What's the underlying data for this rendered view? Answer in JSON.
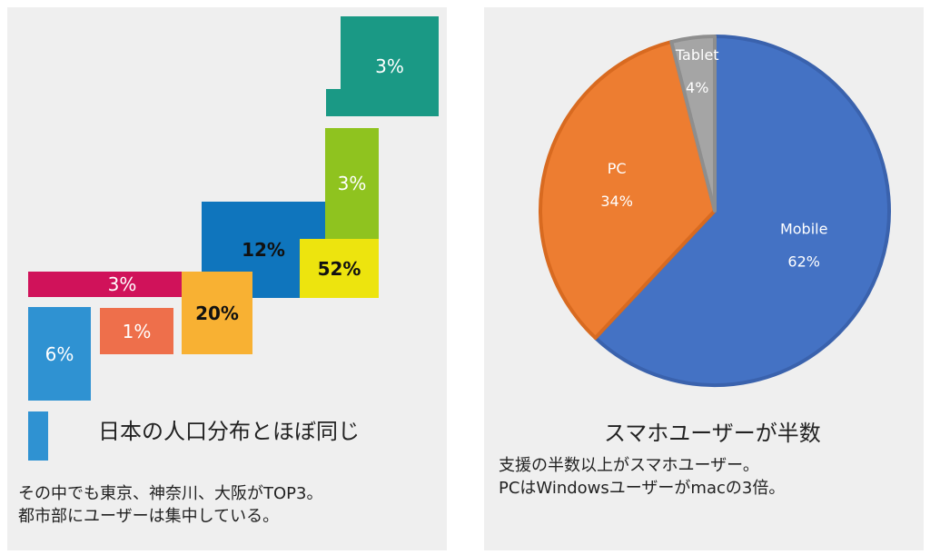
{
  "chart_data": [
    {
      "type": "other",
      "description_label": "map",
      "regions": [
        {
          "name": "hokkaido",
          "label": "3%",
          "value": 3,
          "color": "#1a9985"
        },
        {
          "name": "tohoku",
          "label": "3%",
          "value": 3,
          "color": "#8fc31f"
        },
        {
          "name": "kanto",
          "label": "52%",
          "value": 52,
          "color": "#ede40e"
        },
        {
          "name": "chubu",
          "label": "12%",
          "value": 12,
          "color": "#0f75bd"
        },
        {
          "name": "kinki",
          "label": "20%",
          "value": 20,
          "color": "#f8b133"
        },
        {
          "name": "chugoku",
          "label": "3%",
          "value": 3,
          "color": "#d0125a"
        },
        {
          "name": "shikoku",
          "label": "1%",
          "value": 1,
          "color": "#ee6f4b"
        },
        {
          "name": "kyushu",
          "label": "6%",
          "value": 6,
          "color": "#2f92d2"
        },
        {
          "name": "okinawa",
          "label": "",
          "color": "#2f92d2"
        }
      ],
      "caption": "日本の人口分布とほぼ同じ",
      "notes": [
        "その中でも東京、神奈川、大阪がTOP3。",
        "都市部にユーザーは集中している。"
      ]
    },
    {
      "type": "pie",
      "categories": [
        "Mobile",
        "PC",
        "Tablet"
      ],
      "values": [
        62,
        34,
        4
      ],
      "labels": [
        "62%",
        "34%",
        "4%"
      ],
      "colors": [
        "#4472c4",
        "#ed7d31",
        "#a5a5a5"
      ],
      "caption": "スマホユーザーが半数",
      "notes": [
        "支援の半数以上がスマホユーザー。",
        "PCはWindowsユーザーがmacの3倍。"
      ]
    }
  ]
}
